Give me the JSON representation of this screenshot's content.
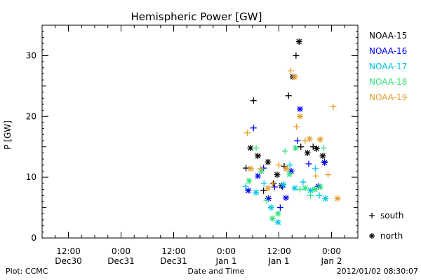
{
  "chart_data": {
    "type": "scatter",
    "title": "Hemispheric Power [GW]",
    "ylabel": "P [GW]",
    "xlabel": "Date and Time",
    "footer_left": "Plot: CCMC",
    "footer_right": "2012/01/02 08:30:07",
    "ylim": [
      0,
      35
    ],
    "y_ticks": [
      0,
      10,
      20,
      30
    ],
    "x_range_hours": [
      -42,
      30
    ],
    "x_ticks": [
      {
        "h": -36,
        "time": "12:00",
        "date": "Dec30"
      },
      {
        "h": -24,
        "time": "0:00",
        "date": "Dec31"
      },
      {
        "h": -12,
        "time": "12:00",
        "date": "Dec31"
      },
      {
        "h": 0,
        "time": "0:00",
        "date": "Jan 1"
      },
      {
        "h": 12,
        "time": "12:00",
        "date": "Jan 1"
      },
      {
        "h": 24,
        "time": "0:00",
        "date": "Jan 2"
      }
    ],
    "legend": {
      "placement": "right",
      "symbols": [
        {
          "glyph": "+",
          "label": "south"
        },
        {
          "glyph": "*",
          "label": "north"
        }
      ]
    },
    "series": [
      {
        "name": "NOAA-15",
        "color": "#000000",
        "points": [
          {
            "x": 4.5,
            "y": 11.5,
            "m": "+"
          },
          {
            "x": 5.5,
            "y": 14.8,
            "m": "*"
          },
          {
            "x": 6.2,
            "y": 22.6,
            "m": "+"
          },
          {
            "x": 7.2,
            "y": 13.5,
            "m": "*"
          },
          {
            "x": 8.5,
            "y": 7.8,
            "m": "+"
          },
          {
            "x": 9.5,
            "y": 12.5,
            "m": "*"
          },
          {
            "x": 10.8,
            "y": 9.0,
            "m": "+"
          },
          {
            "x": 11.6,
            "y": 10.4,
            "m": "*"
          },
          {
            "x": 12.6,
            "y": 8.6,
            "m": "*"
          },
          {
            "x": 13.2,
            "y": 11.8,
            "m": "+"
          },
          {
            "x": 14.2,
            "y": 23.4,
            "m": "+"
          },
          {
            "x": 15.2,
            "y": 26.5,
            "m": "*"
          },
          {
            "x": 15.9,
            "y": 30.0,
            "m": "+"
          },
          {
            "x": 16.6,
            "y": 32.3,
            "m": "*"
          },
          {
            "x": 17.0,
            "y": 15.0,
            "m": "+"
          },
          {
            "x": 18.5,
            "y": 14.0,
            "m": "*"
          },
          {
            "x": 19.8,
            "y": 15.0,
            "m": "+"
          },
          {
            "x": 20.6,
            "y": 14.7,
            "m": "*"
          },
          {
            "x": 22.0,
            "y": 13.5,
            "m": "*"
          },
          {
            "x": 22.4,
            "y": 12.5,
            "m": "+"
          }
        ]
      },
      {
        "name": "NOAA-16",
        "color": "#0000ff",
        "points": [
          {
            "x": 5.0,
            "y": 7.8,
            "m": "*"
          },
          {
            "x": 6.2,
            "y": 18.1,
            "m": "+"
          },
          {
            "x": 7.2,
            "y": 10.2,
            "m": "*"
          },
          {
            "x": 8.5,
            "y": 11.5,
            "m": "+"
          },
          {
            "x": 9.6,
            "y": 6.5,
            "m": "*"
          },
          {
            "x": 11.0,
            "y": 8.4,
            "m": "+"
          },
          {
            "x": 12.3,
            "y": 5.0,
            "m": "+"
          },
          {
            "x": 12.8,
            "y": 8.4,
            "m": "+"
          },
          {
            "x": 13.6,
            "y": 6.6,
            "m": "*"
          },
          {
            "x": 14.8,
            "y": 11.0,
            "m": "*"
          },
          {
            "x": 16.2,
            "y": 16.0,
            "m": "+"
          },
          {
            "x": 16.8,
            "y": 21.2,
            "m": "*"
          },
          {
            "x": 18.8,
            "y": 12.2,
            "m": "+"
          },
          {
            "x": 21.0,
            "y": 8.5,
            "m": "*"
          },
          {
            "x": 22.4,
            "y": 12.4,
            "m": "*"
          }
        ]
      },
      {
        "name": "NOAA-17",
        "color": "#00c8e6",
        "points": [
          {
            "x": 4.4,
            "y": 8.5,
            "m": "+"
          },
          {
            "x": 6.8,
            "y": 7.5,
            "m": "*"
          },
          {
            "x": 8.6,
            "y": 9.0,
            "m": "+"
          },
          {
            "x": 10.2,
            "y": 5.0,
            "m": "*"
          },
          {
            "x": 11.8,
            "y": 2.6,
            "m": "*"
          },
          {
            "x": 13.0,
            "y": 8.8,
            "m": "*"
          },
          {
            "x": 14.5,
            "y": 12.0,
            "m": "+"
          },
          {
            "x": 15.6,
            "y": 8.2,
            "m": "*"
          },
          {
            "x": 17.5,
            "y": 9.2,
            "m": "+"
          },
          {
            "x": 19.2,
            "y": 7.8,
            "m": "*"
          },
          {
            "x": 20.3,
            "y": 11.4,
            "m": "+"
          },
          {
            "x": 21.2,
            "y": 7.0,
            "m": "+"
          },
          {
            "x": 22.6,
            "y": 6.5,
            "m": "*"
          }
        ]
      },
      {
        "name": "NOAA-18",
        "color": "#33e07a",
        "points": [
          {
            "x": 5.2,
            "y": 9.4,
            "m": "*"
          },
          {
            "x": 6.8,
            "y": 14.8,
            "m": "+"
          },
          {
            "x": 8.0,
            "y": 11.0,
            "m": "*"
          },
          {
            "x": 9.2,
            "y": 6.2,
            "m": "+"
          },
          {
            "x": 10.5,
            "y": 3.2,
            "m": "*"
          },
          {
            "x": 11.8,
            "y": 4.0,
            "m": "*"
          },
          {
            "x": 13.4,
            "y": 14.3,
            "m": "+"
          },
          {
            "x": 14.4,
            "y": 10.5,
            "m": "*"
          },
          {
            "x": 15.8,
            "y": 14.8,
            "m": "*"
          },
          {
            "x": 16.8,
            "y": 8.0,
            "m": "+"
          },
          {
            "x": 18.0,
            "y": 8.2,
            "m": "*"
          },
          {
            "x": 19.2,
            "y": 7.0,
            "m": "+"
          },
          {
            "x": 20.2,
            "y": 8.0,
            "m": "*"
          },
          {
            "x": 21.4,
            "y": 8.4,
            "m": "*"
          },
          {
            "x": 22.2,
            "y": 14.8,
            "m": "+"
          }
        ]
      },
      {
        "name": "NOAA-19",
        "color": "#e6a030",
        "points": [
          {
            "x": 4.8,
            "y": 17.3,
            "m": "+"
          },
          {
            "x": 5.6,
            "y": 11.4,
            "m": "*"
          },
          {
            "x": 7.8,
            "y": 11.4,
            "m": "+"
          },
          {
            "x": 9.5,
            "y": 8.2,
            "m": "*"
          },
          {
            "x": 10.6,
            "y": 8.9,
            "m": "+"
          },
          {
            "x": 12.0,
            "y": 12.0,
            "m": "+"
          },
          {
            "x": 13.7,
            "y": 11.4,
            "m": "*"
          },
          {
            "x": 14.7,
            "y": 27.5,
            "m": "+"
          },
          {
            "x": 15.6,
            "y": 26.5,
            "m": "*"
          },
          {
            "x": 16.0,
            "y": 18.3,
            "m": "+"
          },
          {
            "x": 16.8,
            "y": 20.0,
            "m": "*"
          },
          {
            "x": 18.0,
            "y": 16.0,
            "m": "+"
          },
          {
            "x": 19.0,
            "y": 16.3,
            "m": "*"
          },
          {
            "x": 20.4,
            "y": 10.2,
            "m": "+"
          },
          {
            "x": 21.4,
            "y": 16.2,
            "m": "*"
          },
          {
            "x": 23.2,
            "y": 10.4,
            "m": "+"
          },
          {
            "x": 24.4,
            "y": 21.6,
            "m": "+"
          },
          {
            "x": 25.4,
            "y": 6.5,
            "m": "*"
          }
        ]
      }
    ]
  }
}
